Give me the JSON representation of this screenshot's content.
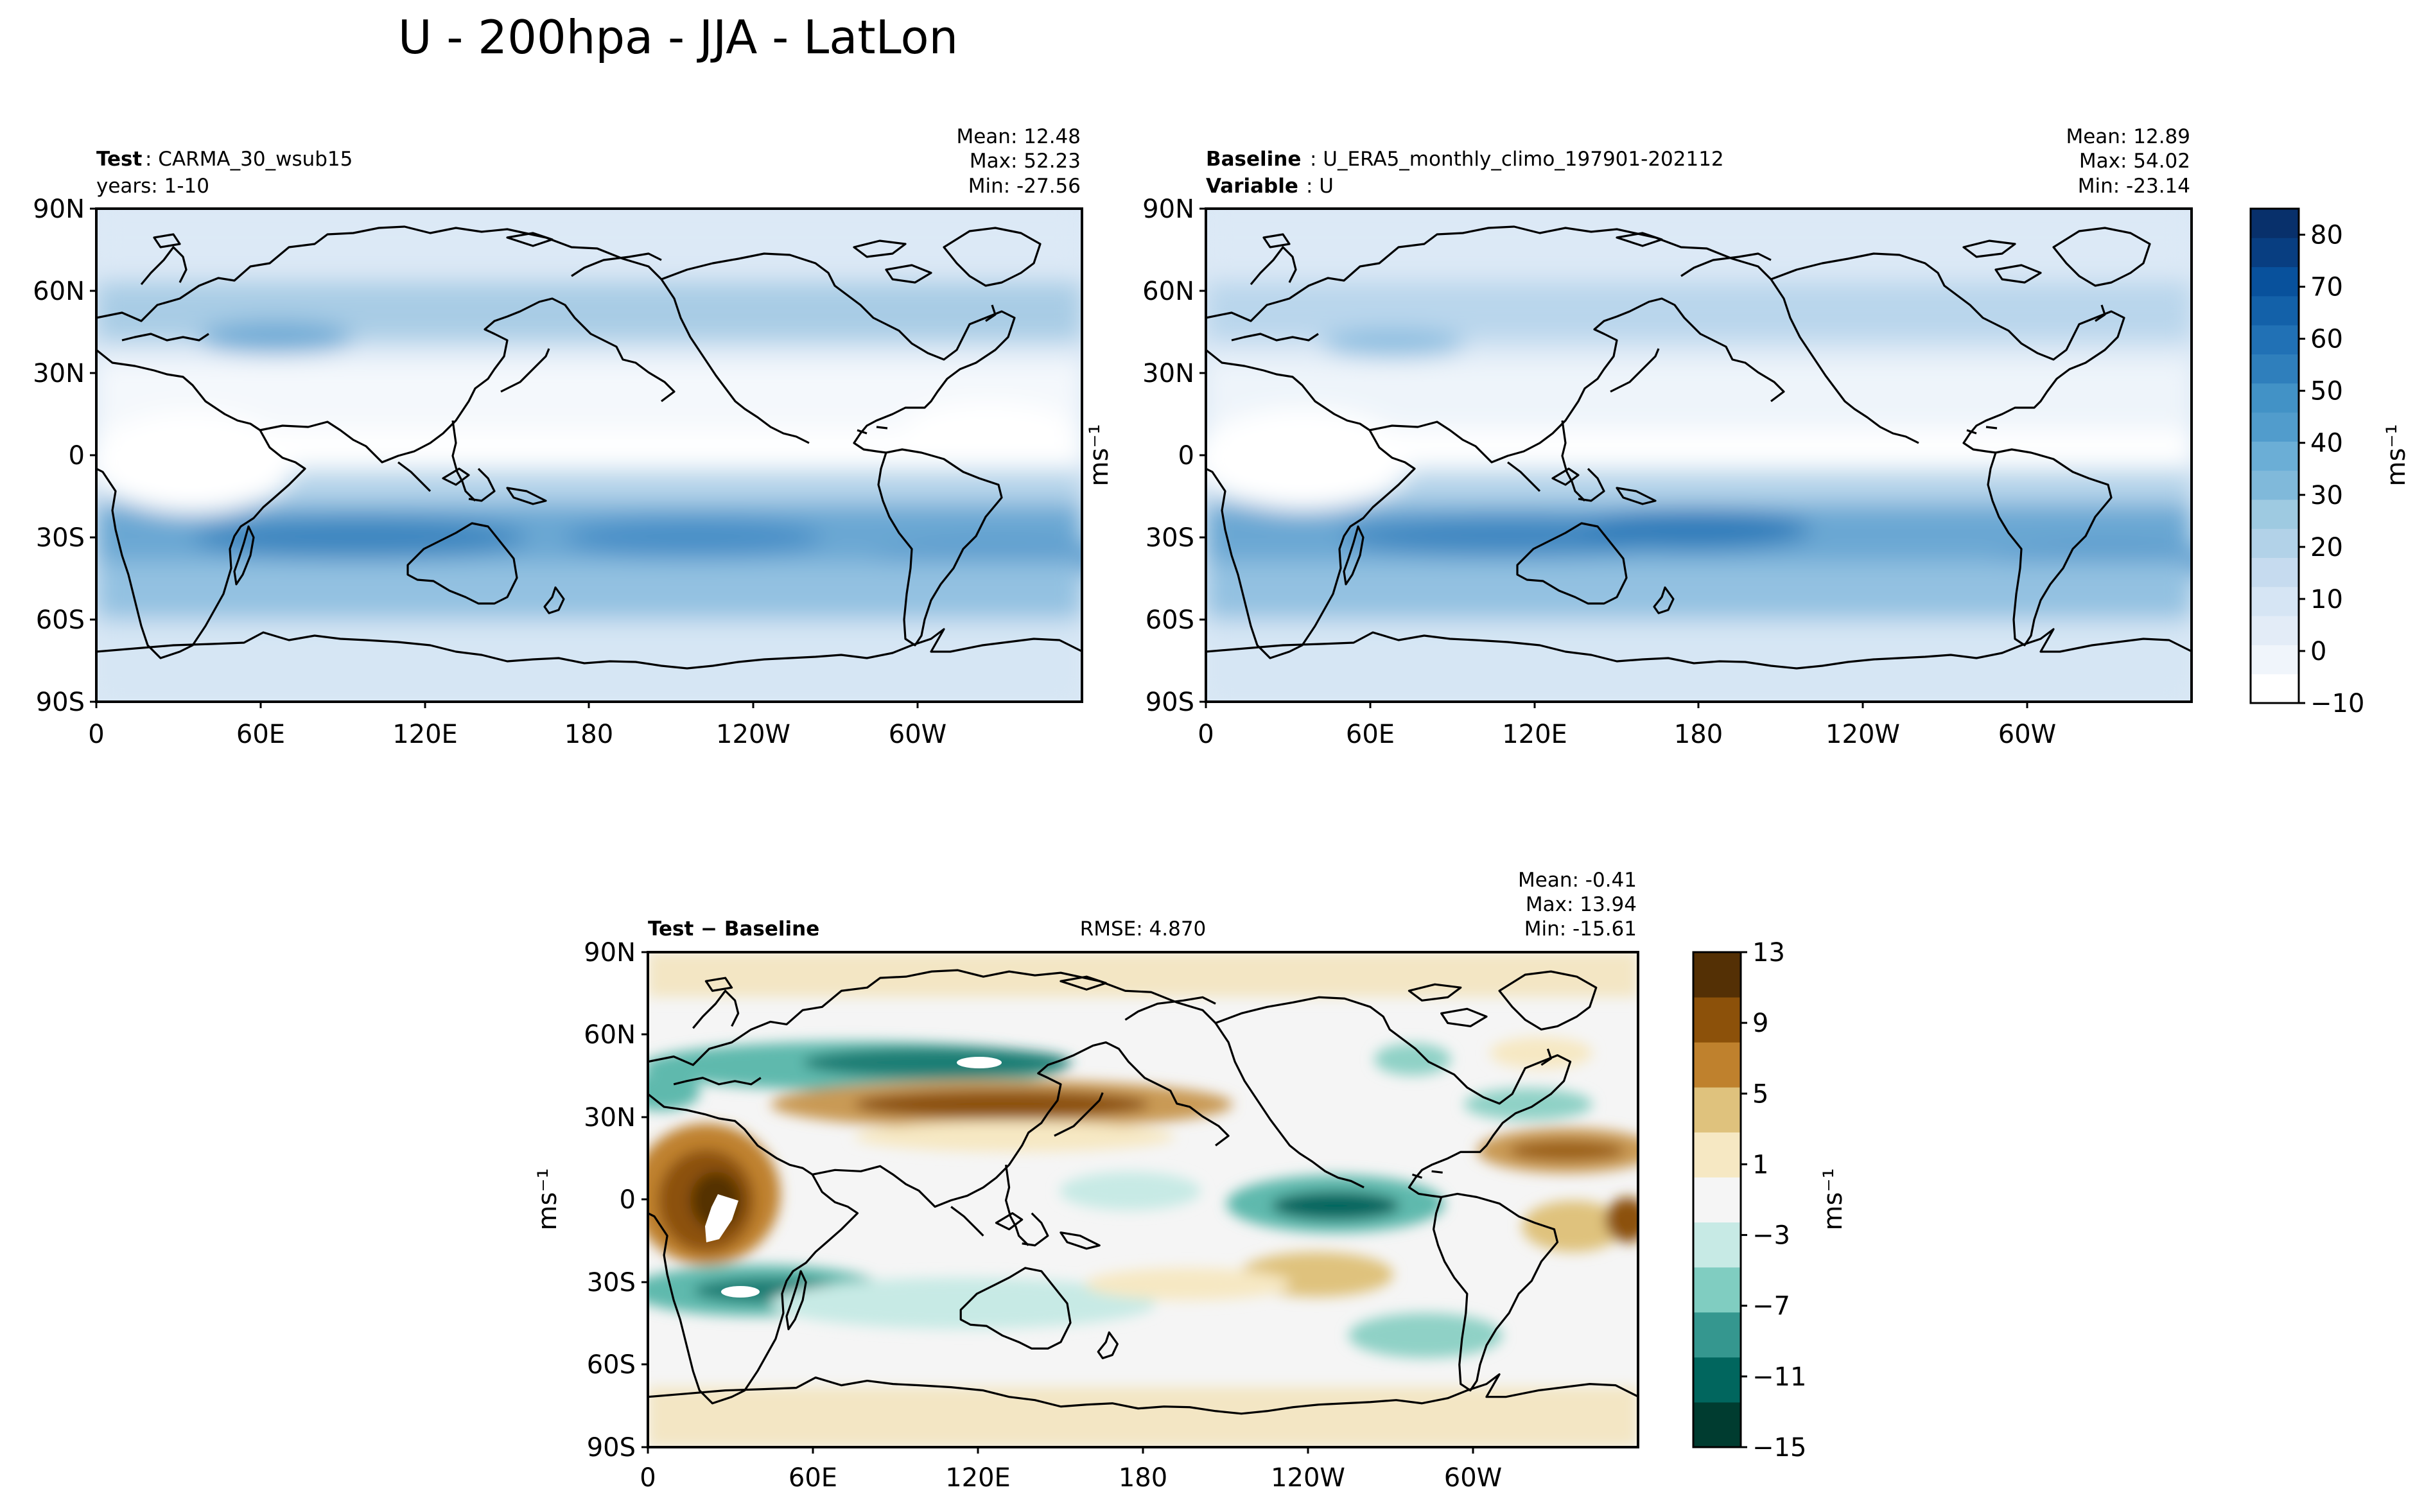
{
  "figure": {
    "title": "U - 200hpa - JJA - LatLon"
  },
  "axes": {
    "lat_ticks": [
      "90N",
      "60N",
      "30N",
      "0",
      "30S",
      "60S",
      "90S"
    ],
    "lon_ticks": [
      "0",
      "60E",
      "120E",
      "180",
      "120W",
      "60W"
    ]
  },
  "panels": {
    "test": {
      "label_bold": "Test",
      "label_text": ": CARMA_30_wsub15",
      "line2": "years: 1-10",
      "mean": "Mean: 12.48",
      "max": "Max: 52.23",
      "min": "Min: -27.56"
    },
    "baseline": {
      "label_bold": "Baseline",
      "label_text": ": U_ERA5_monthly_climo_197901-202112",
      "line2_bold": "Variable",
      "line2_text": ": U",
      "mean": "Mean: 12.89",
      "max": "Max: 54.02",
      "min": "Min: -23.14"
    },
    "diff": {
      "label": "Test − Baseline",
      "rmse": "RMSE: 4.870",
      "mean": "Mean: -0.41",
      "max": "Max: 13.94",
      "min": "Min: -15.61"
    }
  },
  "colorbars": {
    "top": {
      "ticks": [
        "−10",
        "0",
        "10",
        "20",
        "30",
        "40",
        "50",
        "60",
        "70",
        "80"
      ],
      "label": "ms⁻¹",
      "colors": [
        "#ffffff",
        "#f0f5fb",
        "#e3ecf7",
        "#d6e5f4",
        "#c6dbef",
        "#b2d2e8",
        "#9ecae1",
        "#80b9da",
        "#6baed6",
        "#519ccc",
        "#4292c6",
        "#2f7fbc",
        "#2171b5",
        "#1361a9",
        "#08519c",
        "#083e81",
        "#08306b"
      ]
    },
    "diff": {
      "ticks": [
        "13",
        "9",
        "5",
        "1",
        "−3",
        "−7",
        "−11",
        "−15"
      ],
      "label": "ms⁻¹",
      "colors": [
        "#003c30",
        "#01665e",
        "#35978f",
        "#80cdc1",
        "#c7eae5",
        "#f5f5f5",
        "#f6e8c3",
        "#dfc27d",
        "#bf812d",
        "#8c510a",
        "#543005"
      ]
    }
  },
  "side_labels": {
    "between_top_maps": "ms⁻¹",
    "diff_left": "ms⁻¹"
  },
  "chart_data": {
    "type": "heatmap",
    "title": "U - 200hpa - JJA - LatLon",
    "xlabel": "",
    "ylabel": "",
    "xlim": [
      0,
      360
    ],
    "ylim": [
      -90,
      90
    ],
    "panels": [
      {
        "name": "Test",
        "mean": 12.48,
        "max": 52.23,
        "min": -27.56,
        "colorbar_range": [
          -10,
          85
        ]
      },
      {
        "name": "Baseline",
        "mean": 12.89,
        "max": 54.02,
        "min": -23.14,
        "colorbar_range": [
          -10,
          85
        ]
      },
      {
        "name": "Test − Baseline",
        "mean": -0.41,
        "max": 13.94,
        "min": -15.61,
        "rmse": 4.87,
        "colorbar_range": [
          -15,
          13
        ]
      }
    ]
  }
}
